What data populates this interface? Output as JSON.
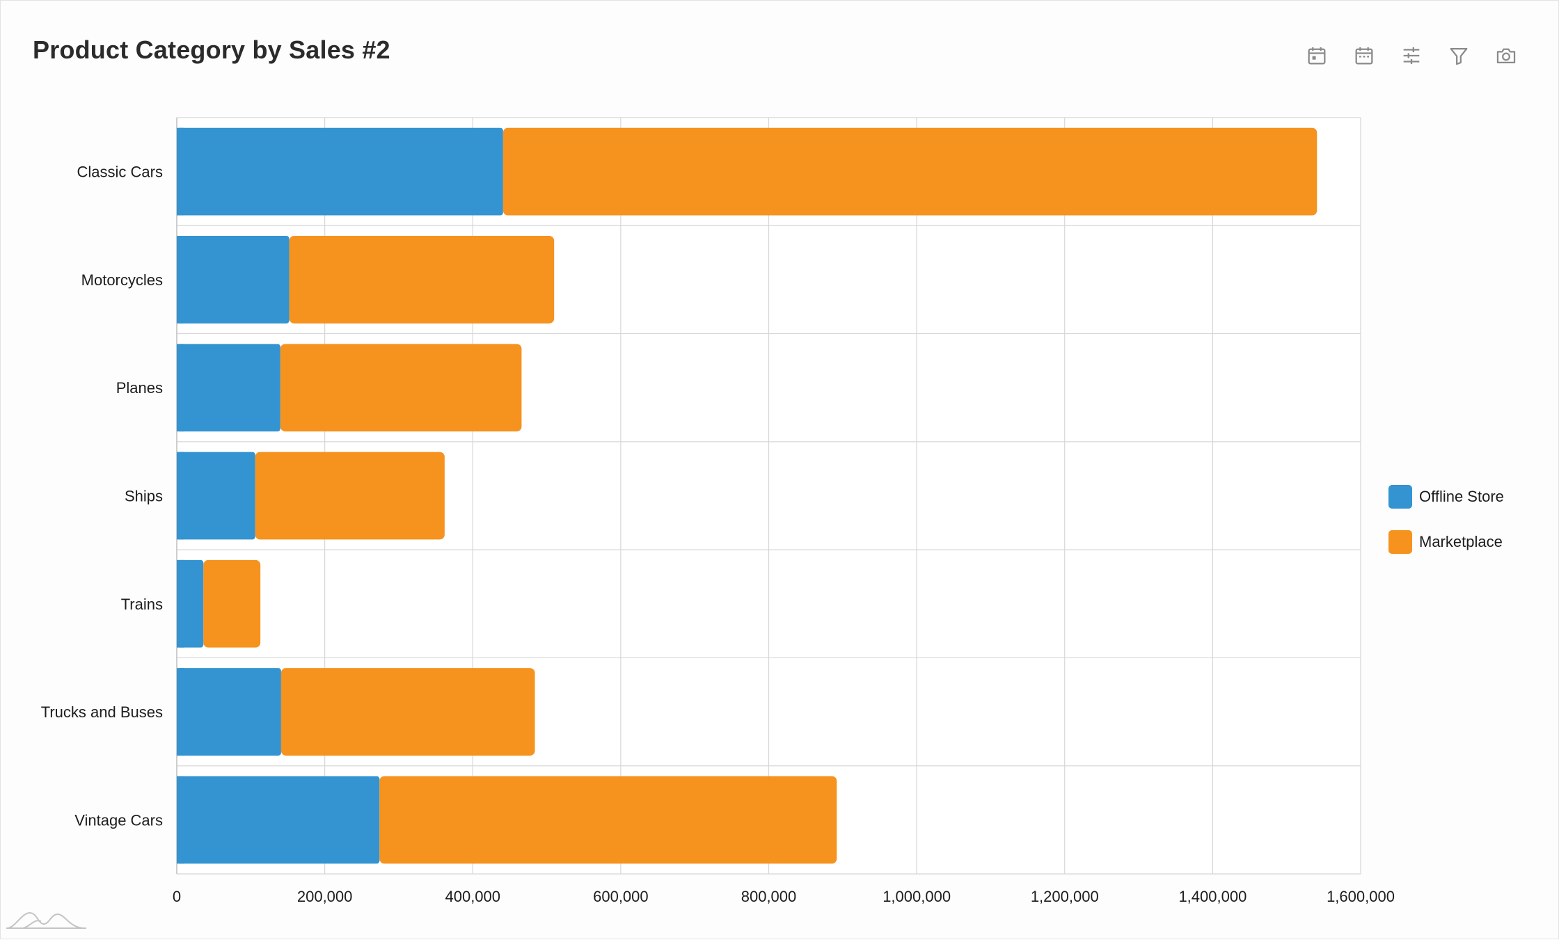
{
  "title": "Product Category by Sales #2",
  "toolbar": {
    "icons": [
      "calendar-day-icon",
      "calendar-icon",
      "sliders-icon",
      "filter-icon",
      "camera-icon"
    ]
  },
  "colors": {
    "offline": "#3394d1",
    "marketplace": "#f6921e",
    "grid": "#d6d6d6",
    "axis": "#bdbdbd"
  },
  "chart_data": {
    "type": "bar",
    "orientation": "horizontal",
    "stacked": true,
    "title": "Product Category by Sales #2",
    "categories": [
      "Classic Cars",
      "Motorcycles",
      "Planes",
      "Ships",
      "Trains",
      "Trucks and Buses",
      "Vintage Cars"
    ],
    "series": [
      {
        "name": "Offline Store",
        "color": "#3394d1",
        "values": [
          441000,
          152000,
          140000,
          106000,
          36000,
          141000,
          274000
        ]
      },
      {
        "name": "Marketplace",
        "color": "#f6921e",
        "values": [
          1100000,
          358000,
          326000,
          256000,
          77000,
          343000,
          618000
        ]
      }
    ],
    "xlim": [
      0,
      1600000
    ],
    "xticks": [
      0,
      200000,
      400000,
      600000,
      800000,
      1000000,
      1200000,
      1400000,
      1600000
    ],
    "xtick_labels": [
      "0",
      "200,000",
      "400,000",
      "600,000",
      "800,000",
      "1,000,000",
      "1,200,000",
      "1,400,000",
      "1,600,000"
    ],
    "grid": true,
    "legend": "right"
  }
}
